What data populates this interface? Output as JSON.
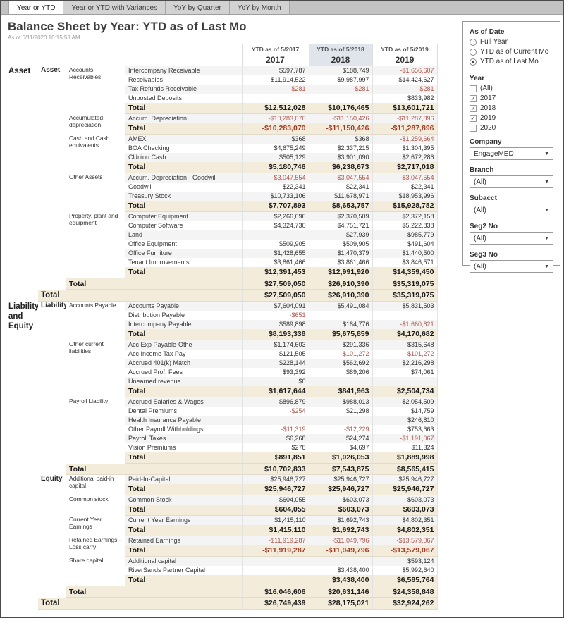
{
  "tabs": {
    "items": [
      {
        "label": "Year or YTD",
        "active": true
      },
      {
        "label": "Year or YTD with Variances",
        "active": false
      },
      {
        "label": "YoY by Quarter",
        "active": false
      },
      {
        "label": "YoY by Month",
        "active": false
      }
    ]
  },
  "header": {
    "title": "Balance Sheet by Year:  YTD as of Last Mo",
    "timestamp": "As of 6/11/2020 10:15:53 AM"
  },
  "table": {
    "columns": [
      {
        "sub": "YTD as of 5/2017",
        "year": "2017",
        "highlight": false
      },
      {
        "sub": "YTD as of 5/2018",
        "year": "2018",
        "highlight": true
      },
      {
        "sub": "YTD as of 5/2019",
        "year": "2019",
        "highlight": false
      }
    ],
    "total_label": "Total",
    "rows": [
      {
        "c1": "Asset",
        "c2": "Asset",
        "c3": "Accounts Receivables",
        "a": "Intercompany Receivable",
        "v": [
          "$597,787",
          "$188,749",
          "-$1,656,607"
        ]
      },
      {
        "a": "Receivables",
        "v": [
          "$11,914,522",
          "$9,987,997",
          "$14,424,627"
        ]
      },
      {
        "a": "Tax Refunds Receivable",
        "v": [
          "-$281",
          "-$281",
          "-$281"
        ]
      },
      {
        "a": "Unposted Deposits",
        "v": [
          "",
          "",
          "$833,982"
        ]
      },
      {
        "t": 4,
        "v": [
          "$12,512,028",
          "$10,176,465",
          "$13,601,721"
        ]
      },
      {
        "c3": "Accumulated depreciation",
        "a": "Accum. Depreciation",
        "v": [
          "-$10,283,070",
          "-$11,150,426",
          "-$11,287,896"
        ]
      },
      {
        "t": 4,
        "v": [
          "-$10,283,070",
          "-$11,150,426",
          "-$11,287,896"
        ]
      },
      {
        "c3": "Cash and Cash equivalents",
        "a": "AMEX",
        "v": [
          "$368",
          "$368",
          "-$1,259,664"
        ]
      },
      {
        "a": "BOA Checking",
        "v": [
          "$4,675,249",
          "$2,337,215",
          "$1,304,395"
        ]
      },
      {
        "a": "CUnion Cash",
        "v": [
          "$505,129",
          "$3,901,090",
          "$2,672,286"
        ]
      },
      {
        "t": 4,
        "v": [
          "$5,180,746",
          "$6,238,673",
          "$2,717,018"
        ]
      },
      {
        "c3": "Other Assets",
        "a": "Accum. Depreciation - Goodwill",
        "v": [
          "-$3,047,554",
          "-$3,047,554",
          "-$3,047,554"
        ]
      },
      {
        "a": "Goodwill",
        "v": [
          "$22,341",
          "$22,341",
          "$22,341"
        ]
      },
      {
        "a": "Treasury Stock",
        "v": [
          "$10,733,106",
          "$11,678,971",
          "$18,953,996"
        ]
      },
      {
        "t": 4,
        "v": [
          "$7,707,893",
          "$8,653,757",
          "$15,928,782"
        ]
      },
      {
        "c3": "Property, plant and equipment",
        "a": "Computer Equipment",
        "v": [
          "$2,266,696",
          "$2,370,509",
          "$2,372,158"
        ]
      },
      {
        "a": "Computer Software",
        "v": [
          "$4,324,730",
          "$4,751,721",
          "$5,222,838"
        ]
      },
      {
        "a": "Land",
        "v": [
          "",
          "$27,939",
          "$985,779"
        ]
      },
      {
        "a": "Office Equipment",
        "v": [
          "$509,905",
          "$509,905",
          "$491,604"
        ]
      },
      {
        "a": "Office Furniture",
        "v": [
          "$1,428,655",
          "$1,470,379",
          "$1,440,500"
        ]
      },
      {
        "a": "Tenant Improvements",
        "v": [
          "$3,861,466",
          "$3,861,466",
          "$3,846,571"
        ]
      },
      {
        "t": 4,
        "v": [
          "$12,391,453",
          "$12,991,920",
          "$14,359,450"
        ]
      },
      {
        "t": 3,
        "v": [
          "$27,509,050",
          "$26,910,390",
          "$35,319,075"
        ]
      },
      {
        "t": 2,
        "v": [
          "$27,509,050",
          "$26,910,390",
          "$35,319,075"
        ]
      },
      {
        "c1": "Liability and Equity",
        "c2": "Liability",
        "c3": "Accounts Payable",
        "a": "Accounts Payable",
        "v": [
          "$7,604,091",
          "$5,491,084",
          "$5,831,503"
        ]
      },
      {
        "a": "Distribution Payable",
        "v": [
          "-$651",
          "",
          ""
        ]
      },
      {
        "a": "Intercompany Payable",
        "v": [
          "$589,898",
          "$184,776",
          "-$1,660,821"
        ]
      },
      {
        "t": 4,
        "v": [
          "$8,193,338",
          "$5,675,859",
          "$4,170,682"
        ]
      },
      {
        "c3": "Other current liabilities",
        "a": "Acc Exp Payable-Othe",
        "v": [
          "$1,174,603",
          "$291,336",
          "$315,648"
        ]
      },
      {
        "a": "Acc Income Tax Pay",
        "v": [
          "$121,505",
          "-$101,272",
          "-$101,272"
        ]
      },
      {
        "a": "Accrued 401(k) Match",
        "v": [
          "$228,144",
          "$562,692",
          "$2,216,298"
        ]
      },
      {
        "a": "Accrued Prof. Fees",
        "v": [
          "$93,392",
          "$89,206",
          "$74,061"
        ]
      },
      {
        "a": "Unearned revenue",
        "v": [
          "$0",
          "",
          ""
        ]
      },
      {
        "t": 4,
        "v": [
          "$1,617,644",
          "$841,963",
          "$2,504,734"
        ]
      },
      {
        "c3": "Payroll Liability",
        "a": "Accrued Salaries & Wages",
        "v": [
          "$896,879",
          "$988,013",
          "$2,054,509"
        ]
      },
      {
        "a": "Dental Premiums",
        "v": [
          "-$254",
          "$21,298",
          "$14,759"
        ]
      },
      {
        "a": "Health Insurance Payable",
        "v": [
          "",
          "",
          "$246,810"
        ]
      },
      {
        "a": "Other Payroll Withholdings",
        "v": [
          "-$11,319",
          "-$12,229",
          "$753,663"
        ]
      },
      {
        "a": "Payroll Taxes",
        "v": [
          "$6,268",
          "$24,274",
          "-$1,191,067"
        ]
      },
      {
        "a": "Vision Premiums",
        "v": [
          "$278",
          "$4,697",
          "$11,324"
        ]
      },
      {
        "t": 4,
        "v": [
          "$891,851",
          "$1,026,053",
          "$1,889,998"
        ]
      },
      {
        "t": 3,
        "v": [
          "$10,702,833",
          "$7,543,875",
          "$8,565,415"
        ]
      },
      {
        "c2": "Equity",
        "c3": "Additional paid-in capital",
        "a": "Paid-In-Capital",
        "v": [
          "$25,946,727",
          "$25,946,727",
          "$25,946,727"
        ]
      },
      {
        "t": 4,
        "v": [
          "$25,946,727",
          "$25,946,727",
          "$25,946,727"
        ]
      },
      {
        "c3": "Common stock",
        "a": "Common Stock",
        "v": [
          "$604,055",
          "$603,073",
          "$603,073"
        ]
      },
      {
        "t": 4,
        "v": [
          "$604,055",
          "$603,073",
          "$603,073"
        ]
      },
      {
        "c3": "Current Year Earnings",
        "a": "Current Year Earnings",
        "v": [
          "$1,415,110",
          "$1,692,743",
          "$4,802,351"
        ]
      },
      {
        "t": 4,
        "v": [
          "$1,415,110",
          "$1,692,743",
          "$4,802,351"
        ]
      },
      {
        "c3": "Retained Earnings - Loss carry",
        "a": "Retained Earnings",
        "v": [
          "-$11,919,287",
          "-$11,049,796",
          "-$13,579,067"
        ]
      },
      {
        "t": 4,
        "v": [
          "-$11,919,287",
          "-$11,049,796",
          "-$13,579,067"
        ]
      },
      {
        "c3": "Share capital",
        "a": "Additional capital",
        "v": [
          "",
          "",
          "$593,124"
        ]
      },
      {
        "a": "RiverSands Partner Capital",
        "v": [
          "",
          "$3,438,400",
          "$5,992,640"
        ]
      },
      {
        "t": 4,
        "v": [
          "",
          "$3,438,400",
          "$6,585,764"
        ]
      },
      {
        "t": 3,
        "v": [
          "$16,046,606",
          "$20,631,146",
          "$24,358,848"
        ]
      },
      {
        "t": 2,
        "v": [
          "$26,749,439",
          "$28,175,021",
          "$32,924,262"
        ]
      }
    ]
  },
  "filters": {
    "as_of_date": {
      "label": "As of Date",
      "options": [
        {
          "label": "Full Year",
          "selected": false
        },
        {
          "label": "YTD as of Current Mo",
          "selected": false
        },
        {
          "label": "YTD as of Last Mo",
          "selected": true
        }
      ]
    },
    "year": {
      "label": "Year",
      "options": [
        {
          "label": "(All)",
          "checked": false
        },
        {
          "label": "2017",
          "checked": true
        },
        {
          "label": "2018",
          "checked": true
        },
        {
          "label": "2019",
          "checked": true
        },
        {
          "label": "2020",
          "checked": false
        }
      ]
    },
    "dropdowns": [
      {
        "label": "Company",
        "value": "EngageMED"
      },
      {
        "label": "Branch",
        "value": "(All)"
      },
      {
        "label": "Subacct",
        "value": "(All)"
      },
      {
        "label": "Seg2 No",
        "value": "(All)"
      },
      {
        "label": "Seg3 No",
        "value": "(All)"
      }
    ]
  },
  "colors": {
    "total_band": "#f3ecdb",
    "negative": "#b2554a",
    "negative_total": "#a63a24",
    "highlight_column": "#dfe5eb"
  }
}
